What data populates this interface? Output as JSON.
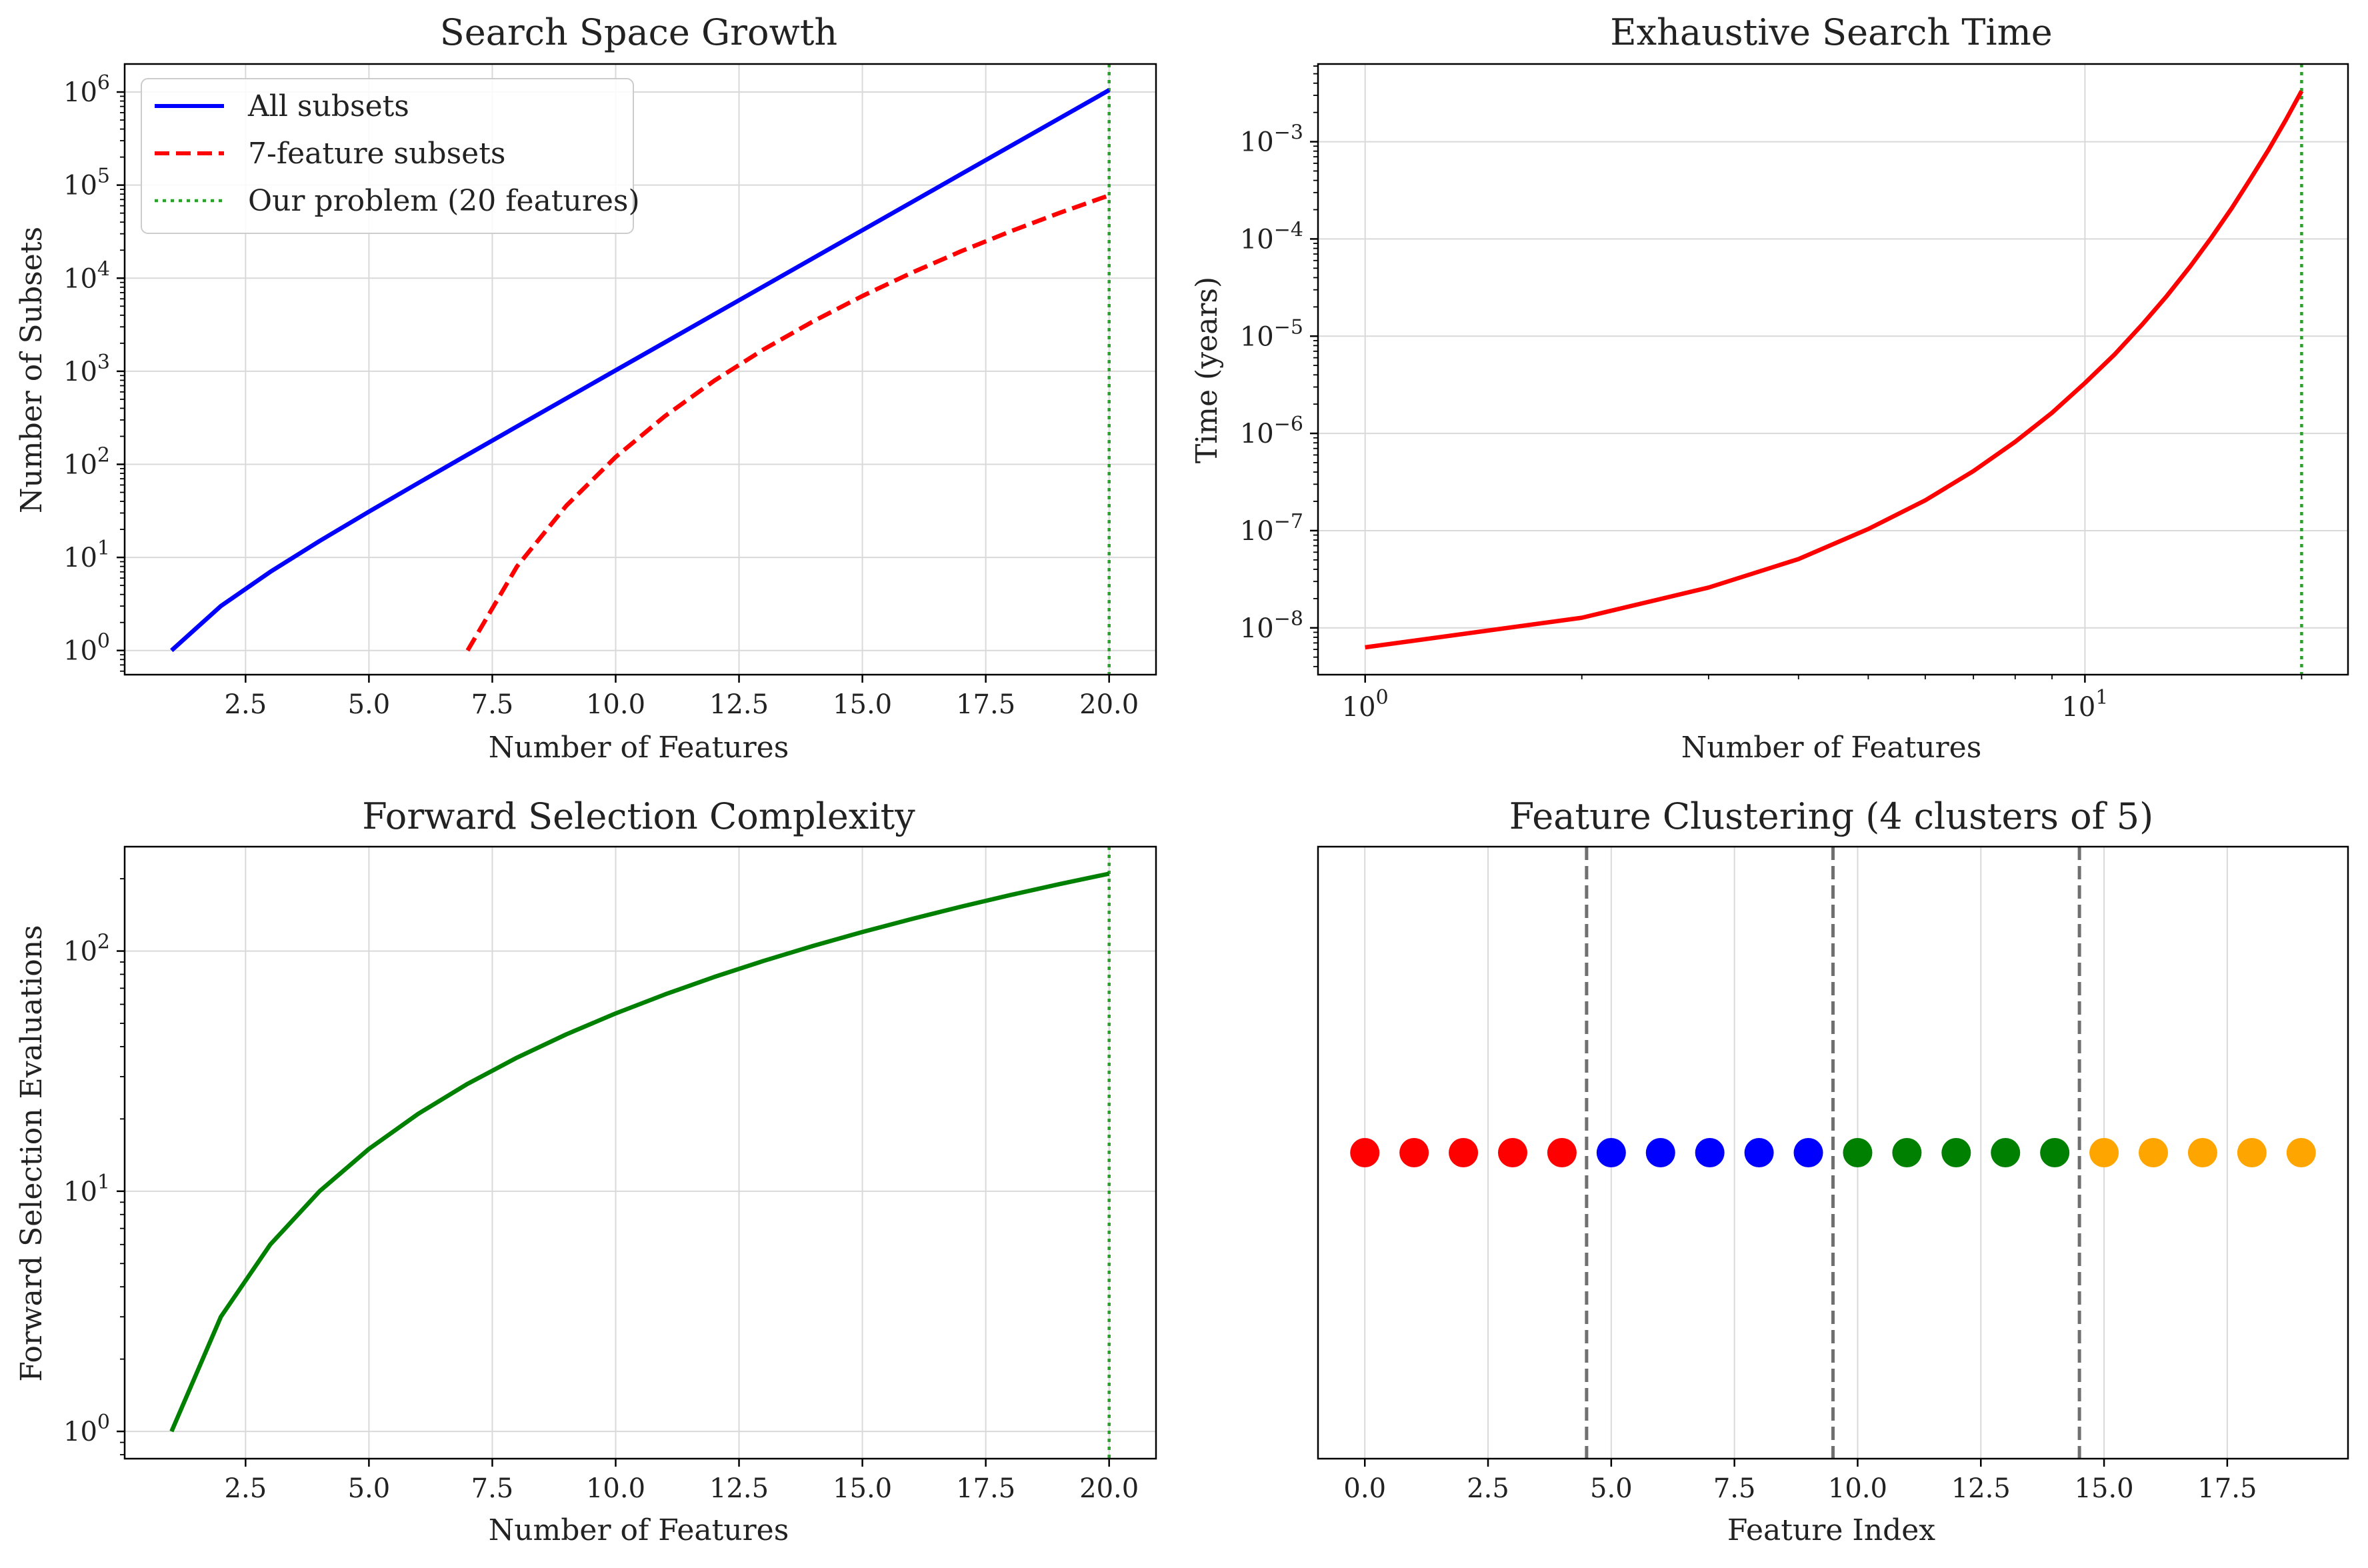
{
  "chart_data": [
    {
      "type": "line",
      "title": "Search Space Growth",
      "xlabel": "Number of Features",
      "ylabel": "Number of Subsets",
      "xscale": "linear",
      "yscale": "log",
      "xlim": [
        0.05,
        20.95
      ],
      "ylim": [
        0.55,
        2000000
      ],
      "x_ticks": [
        2.5,
        5.0,
        7.5,
        10.0,
        12.5,
        15.0,
        17.5,
        20.0
      ],
      "x_tick_labels": [
        "2.5",
        "5.0",
        "7.5",
        "10.0",
        "12.5",
        "15.0",
        "17.5",
        "20.0"
      ],
      "y_ticks": [
        1,
        10,
        100,
        1000,
        10000,
        100000,
        1000000
      ],
      "y_tick_labels": [
        {
          "base": "10",
          "exp": "0"
        },
        {
          "base": "10",
          "exp": "1"
        },
        {
          "base": "10",
          "exp": "2"
        },
        {
          "base": "10",
          "exp": "3"
        },
        {
          "base": "10",
          "exp": "4"
        },
        {
          "base": "10",
          "exp": "5"
        },
        {
          "base": "10",
          "exp": "6"
        }
      ],
      "grid": true,
      "legend_position": "top-left",
      "series": [
        {
          "name": "All subsets",
          "color": "#0000ff",
          "style": "solid",
          "x": [
            1,
            2,
            3,
            4,
            5,
            6,
            7,
            8,
            9,
            10,
            11,
            12,
            13,
            14,
            15,
            16,
            17,
            18,
            19,
            20
          ],
          "y": [
            1,
            3,
            7,
            15,
            31,
            63,
            127,
            255,
            511,
            1023,
            2047,
            4095,
            8191,
            16383,
            32767,
            65535,
            131071,
            262143,
            524287,
            1048575
          ]
        },
        {
          "name": "7-feature subsets",
          "color": "#ff0000",
          "style": "dashed",
          "x": [
            7,
            8,
            9,
            10,
            11,
            12,
            13,
            14,
            15,
            16,
            17,
            18,
            19,
            20
          ],
          "y": [
            1,
            8,
            36,
            120,
            330,
            792,
            1716,
            3432,
            6435,
            11440,
            19448,
            31824,
            50388,
            77520
          ]
        }
      ],
      "vlines": [
        {
          "name": "Our problem (20 features)",
          "x": 20,
          "color": "#2ca02c",
          "style": "dotted"
        }
      ]
    },
    {
      "type": "line",
      "title": "Exhaustive Search Time",
      "xlabel": "Number of Features",
      "ylabel": "Time (years)",
      "xscale": "log",
      "yscale": "log",
      "xlim": [
        0.86,
        23.2
      ],
      "ylim": [
        3.3e-09,
        0.0063
      ],
      "x_ticks": [
        1,
        10
      ],
      "x_tick_labels": [
        {
          "base": "10",
          "exp": "0"
        },
        {
          "base": "10",
          "exp": "1"
        }
      ],
      "y_ticks": [
        1e-08,
        1e-07,
        1e-06,
        1e-05,
        0.0001,
        0.001
      ],
      "y_tick_labels": [
        {
          "base": "10",
          "exp": "−8"
        },
        {
          "base": "10",
          "exp": "−7"
        },
        {
          "base": "10",
          "exp": "−6"
        },
        {
          "base": "10",
          "exp": "−5"
        },
        {
          "base": "10",
          "exp": "−4"
        },
        {
          "base": "10",
          "exp": "−3"
        }
      ],
      "grid": true,
      "series": [
        {
          "name": "Exhaustive search time",
          "color": "#ff0000",
          "style": "solid",
          "x": [
            1,
            2,
            3,
            4,
            5,
            6,
            7,
            8,
            9,
            10,
            11,
            12,
            13,
            14,
            15,
            16,
            17,
            18,
            19,
            20
          ],
          "y": [
            6.3e-09,
            1.27e-08,
            2.6e-08,
            5.1e-08,
            1.04e-07,
            2.05e-07,
            4.1e-07,
            8.2e-07,
            1.63e-06,
            3.3e-06,
            6.5e-06,
            1.31e-05,
            2.6e-05,
            5.2e-05,
            0.000104,
            0.000208,
            0.00042,
            0.00083,
            0.00166,
            0.00332
          ]
        }
      ],
      "vlines": [
        {
          "x": 20,
          "color": "#2ca02c",
          "style": "dotted"
        }
      ]
    },
    {
      "type": "line",
      "title": "Forward Selection Complexity",
      "xlabel": "Number of Features",
      "ylabel": "Forward Selection Evaluations",
      "xscale": "linear",
      "yscale": "log",
      "xlim": [
        0.05,
        20.95
      ],
      "ylim": [
        0.77,
        272
      ],
      "x_ticks": [
        2.5,
        5.0,
        7.5,
        10.0,
        12.5,
        15.0,
        17.5,
        20.0
      ],
      "x_tick_labels": [
        "2.5",
        "5.0",
        "7.5",
        "10.0",
        "12.5",
        "15.0",
        "17.5",
        "20.0"
      ],
      "y_ticks": [
        1,
        10,
        100
      ],
      "y_tick_labels": [
        {
          "base": "10",
          "exp": "0"
        },
        {
          "base": "10",
          "exp": "1"
        },
        {
          "base": "10",
          "exp": "2"
        }
      ],
      "grid": true,
      "series": [
        {
          "name": "Forward selection evaluations",
          "color": "#008000",
          "style": "solid",
          "x": [
            1,
            2,
            3,
            4,
            5,
            6,
            7,
            8,
            9,
            10,
            11,
            12,
            13,
            14,
            15,
            16,
            17,
            18,
            19,
            20
          ],
          "y": [
            1,
            3,
            6,
            10,
            15,
            21,
            28,
            36,
            45,
            55,
            66,
            78,
            91,
            105,
            120,
            136,
            153,
            171,
            190,
            210
          ]
        }
      ],
      "vlines": [
        {
          "x": 20,
          "color": "#2ca02c",
          "style": "dotted"
        }
      ]
    },
    {
      "type": "scatter",
      "title": "Feature Clustering (4 clusters of 5)",
      "xlabel": "Feature Index",
      "ylabel": "",
      "xlim": [
        -0.95,
        19.95
      ],
      "x_ticks": [
        0,
        2.5,
        5,
        7.5,
        10,
        12.5,
        15,
        17.5
      ],
      "x_tick_labels": [
        "0.0",
        "2.5",
        "5.0",
        "7.5",
        "10.0",
        "12.5",
        "15.0",
        "17.5"
      ],
      "grid": true,
      "points": {
        "x": [
          0,
          1,
          2,
          3,
          4,
          5,
          6,
          7,
          8,
          9,
          10,
          11,
          12,
          13,
          14,
          15,
          16,
          17,
          18,
          19
        ],
        "clusters": [
          0,
          0,
          0,
          0,
          0,
          1,
          1,
          1,
          1,
          1,
          2,
          2,
          2,
          2,
          2,
          3,
          3,
          3,
          3,
          3
        ]
      },
      "cluster_colors": [
        "#ff0000",
        "#0000ff",
        "#008000",
        "#ffa500"
      ],
      "boundaries": [
        4.5,
        9.5,
        14.5
      ],
      "boundary_color": "#707070"
    }
  ]
}
